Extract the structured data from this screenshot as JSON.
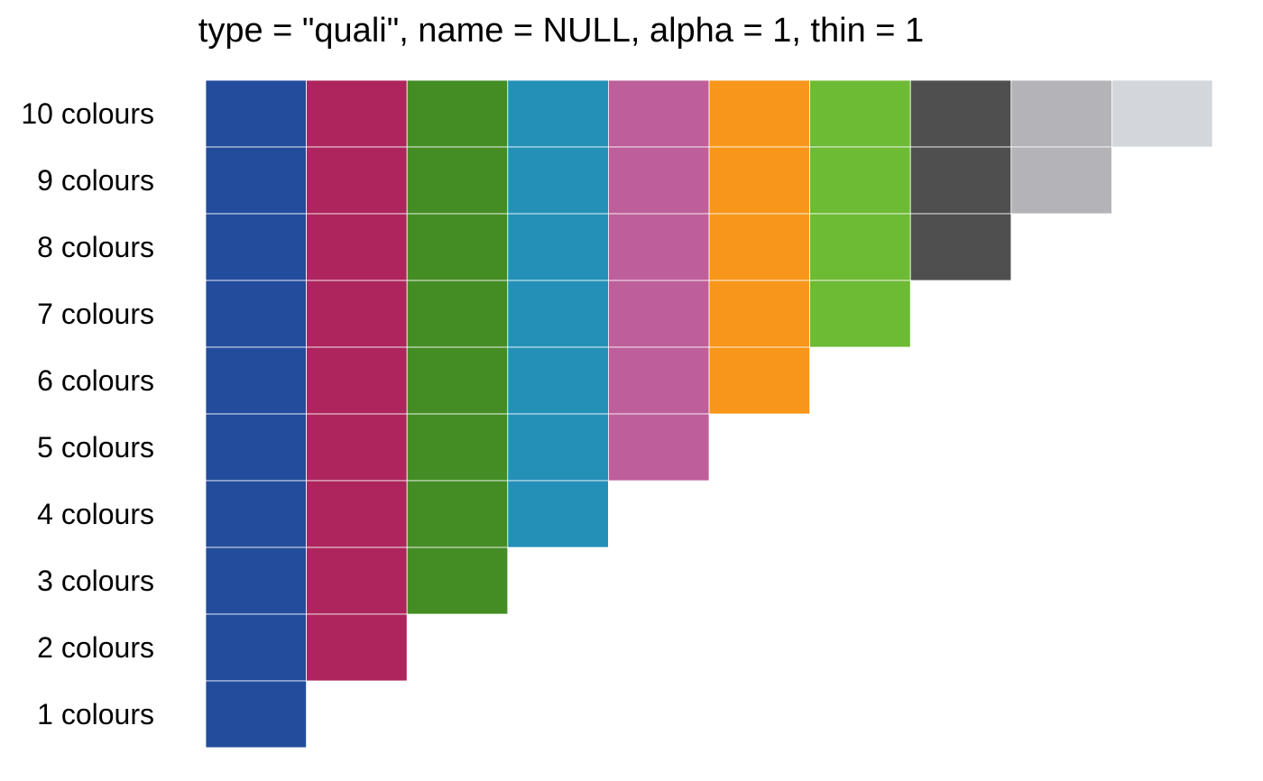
{
  "chart_data": {
    "type": "heatmap",
    "title": "type = \"quali\", name = NULL, alpha = 1, thin = 1",
    "palette": [
      "#234d9c",
      "#ad255c",
      "#448d24",
      "#2490b7",
      "#be5e9a",
      "#f7961a",
      "#6dba35",
      "#4f4f4f",
      "#b4b4b8",
      "#d3d6db"
    ],
    "rows": [
      {
        "label": "10 colours",
        "n": 10
      },
      {
        "label": "9 colours",
        "n": 9
      },
      {
        "label": "8 colours",
        "n": 8
      },
      {
        "label": "7 colours",
        "n": 7
      },
      {
        "label": "6 colours",
        "n": 6
      },
      {
        "label": "5 colours",
        "n": 5
      },
      {
        "label": "4 colours",
        "n": 4
      },
      {
        "label": "3 colours",
        "n": 3
      },
      {
        "label": "2 colours",
        "n": 2
      },
      {
        "label": "1 colours",
        "n": 1
      }
    ]
  }
}
